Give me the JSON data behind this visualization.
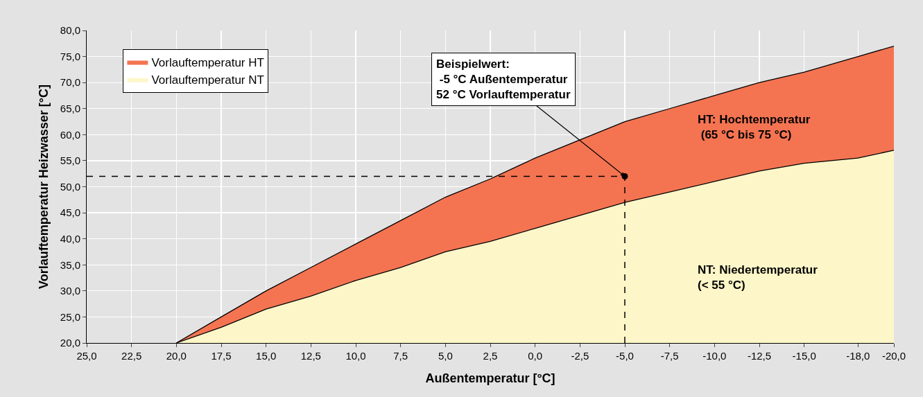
{
  "chart_data": {
    "type": "area",
    "xlabel": "Außentemperatur [°C]",
    "ylabel": "Vorlauftemperatur Heizwasser [°C]",
    "x": [
      20,
      17.5,
      15,
      12.5,
      10,
      7.5,
      5,
      2.5,
      0,
      -2.5,
      -5,
      -7.5,
      -10,
      -12.5,
      -15,
      -18,
      -20
    ],
    "series": [
      {
        "name": "Vorlauftemperatur HT",
        "color": "#f47452",
        "values": [
          20,
          25,
          30,
          34.5,
          39,
          43.5,
          48,
          51.5,
          55.5,
          59,
          62.5,
          65,
          67.5,
          70,
          72,
          75,
          77
        ]
      },
      {
        "name": "Vorlauftemperatur NT",
        "color": "#fdf6c8",
        "values": [
          20,
          23,
          26.5,
          29,
          32,
          34.5,
          37.5,
          39.5,
          42,
          44.5,
          47,
          49,
          51,
          53,
          54.5,
          55.5,
          57
        ]
      },
      {
        "type": "scatter",
        "color": "#000000",
        "x": [
          -5
        ],
        "values": [
          52
        ]
      }
    ],
    "xlim": [
      25,
      -20
    ],
    "xticks": [
      {
        "value": 25,
        "label": "25,0"
      },
      {
        "value": 22.5,
        "label": "22,5"
      },
      {
        "value": 20,
        "label": "20,0"
      },
      {
        "value": 17.5,
        "label": "17,5"
      },
      {
        "value": 15,
        "label": "15,0"
      },
      {
        "value": 12.5,
        "label": "12,5"
      },
      {
        "value": 10,
        "label": "10,0"
      },
      {
        "value": 7.5,
        "label": "7,5"
      },
      {
        "value": 5,
        "label": "5,0"
      },
      {
        "value": 2.5,
        "label": "2,5"
      },
      {
        "value": 0,
        "label": "0,0"
      },
      {
        "value": -2.5,
        "label": "-2,5"
      },
      {
        "value": -5,
        "label": "-5,0"
      },
      {
        "value": -7.5,
        "label": "-7,5"
      },
      {
        "value": -10,
        "label": "-10,0"
      },
      {
        "value": -12.5,
        "label": "-12,5"
      },
      {
        "value": -15,
        "label": "-15,0"
      },
      {
        "value": -18,
        "label": "-18,0"
      },
      {
        "value": -20,
        "label": "-20,0"
      }
    ],
    "ylim": [
      20,
      80
    ],
    "yticks": [
      {
        "value": 20,
        "label": "20,0"
      },
      {
        "value": 25,
        "label": "25,0"
      },
      {
        "value": 30,
        "label": "30,0"
      },
      {
        "value": 35,
        "label": "35,0"
      },
      {
        "value": 40,
        "label": "40,0"
      },
      {
        "value": 45,
        "label": "45,0"
      },
      {
        "value": 50,
        "label": "50,0"
      },
      {
        "value": 55,
        "label": "55,0"
      },
      {
        "value": 60,
        "label": "60,0"
      },
      {
        "value": 65,
        "label": "65,0"
      },
      {
        "value": 70,
        "label": "70,0"
      },
      {
        "value": 75,
        "label": "75,0"
      },
      {
        "value": 80,
        "label": "80,0"
      }
    ],
    "ref_lines": [
      {
        "axis": "x",
        "value": -5,
        "color": "#000000",
        "line_style": "dashed"
      },
      {
        "axis": "y",
        "value": 52,
        "color": "#000000",
        "line_style": "dashed"
      }
    ],
    "annotations": [
      {
        "text": "Beispielwert:\n -5 °C Außentemperatur\n52 °C Vorlauftemperatur",
        "x": -5,
        "y": 52
      },
      "HT: Hochtemperatur\n (65 °C bis 75 °C)",
      "NT: Niedertemperatur\n(< 55 °C)"
    ],
    "grid": true,
    "legend": "top left"
  }
}
